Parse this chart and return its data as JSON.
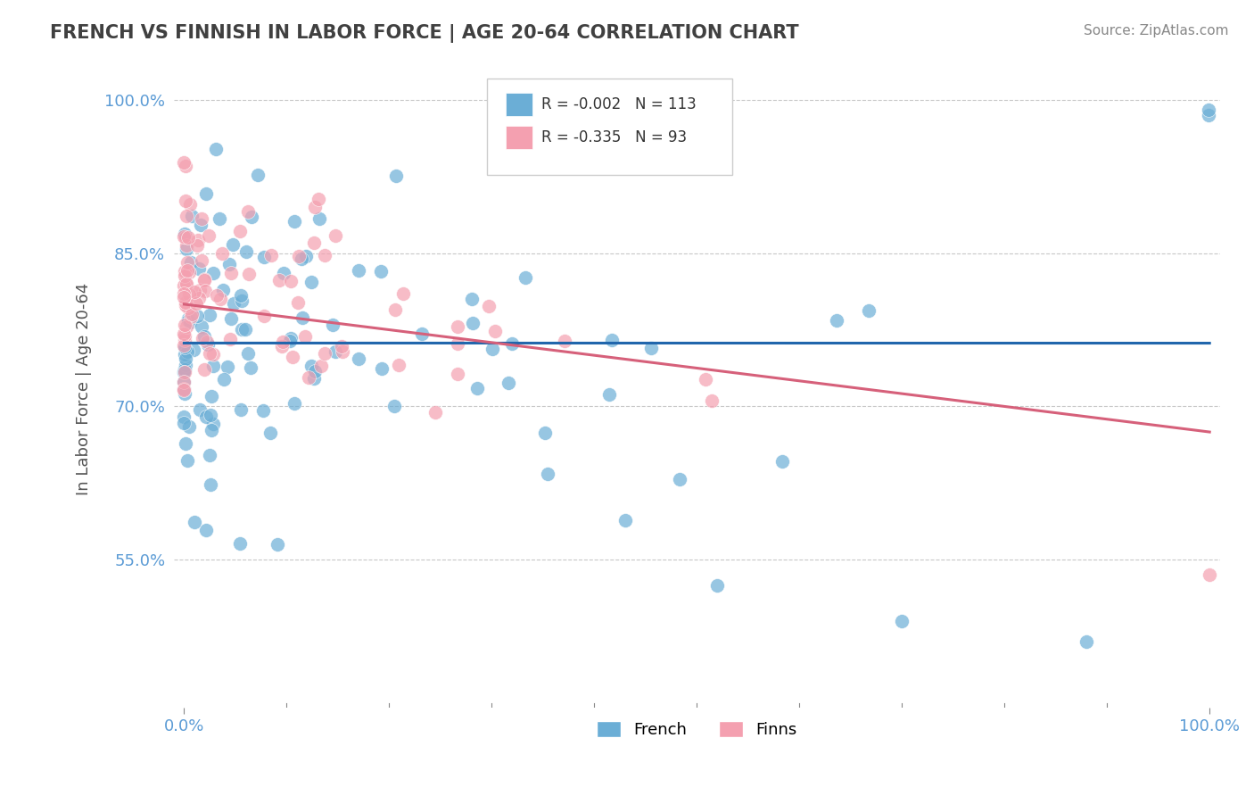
{
  "title": "FRENCH VS FINNISH IN LABOR FORCE | AGE 20-64 CORRELATION CHART",
  "xlabel": "",
  "ylabel": "In Labor Force | Age 20-64",
  "source_text": "Source: ZipAtlas.com",
  "legend_french": "French",
  "legend_finns": "Finns",
  "R_french": "-0.002",
  "N_french": "113",
  "R_finns": "-0.335",
  "N_finns": "93",
  "xlim": [
    0,
    1
  ],
  "ylim": [
    0.405,
    1.03
  ],
  "yticks": [
    0.55,
    0.7,
    0.85,
    1.0
  ],
  "ytick_labels": [
    "55.0%",
    "70.0%",
    "85.0%",
    "100.0%"
  ],
  "blue_color": "#6baed6",
  "pink_color": "#f4a0b0",
  "blue_line_color": "#2166ac",
  "pink_line_color": "#d6607a",
  "grid_color": "#c8c8c8",
  "bg_color": "#ffffff",
  "title_color": "#404040",
  "axis_label_color": "#5b9bd5",
  "french_line_intercept": 0.762,
  "french_line_slope": -0.0001,
  "finns_line_intercept": 0.8,
  "finns_line_slope": -0.125
}
